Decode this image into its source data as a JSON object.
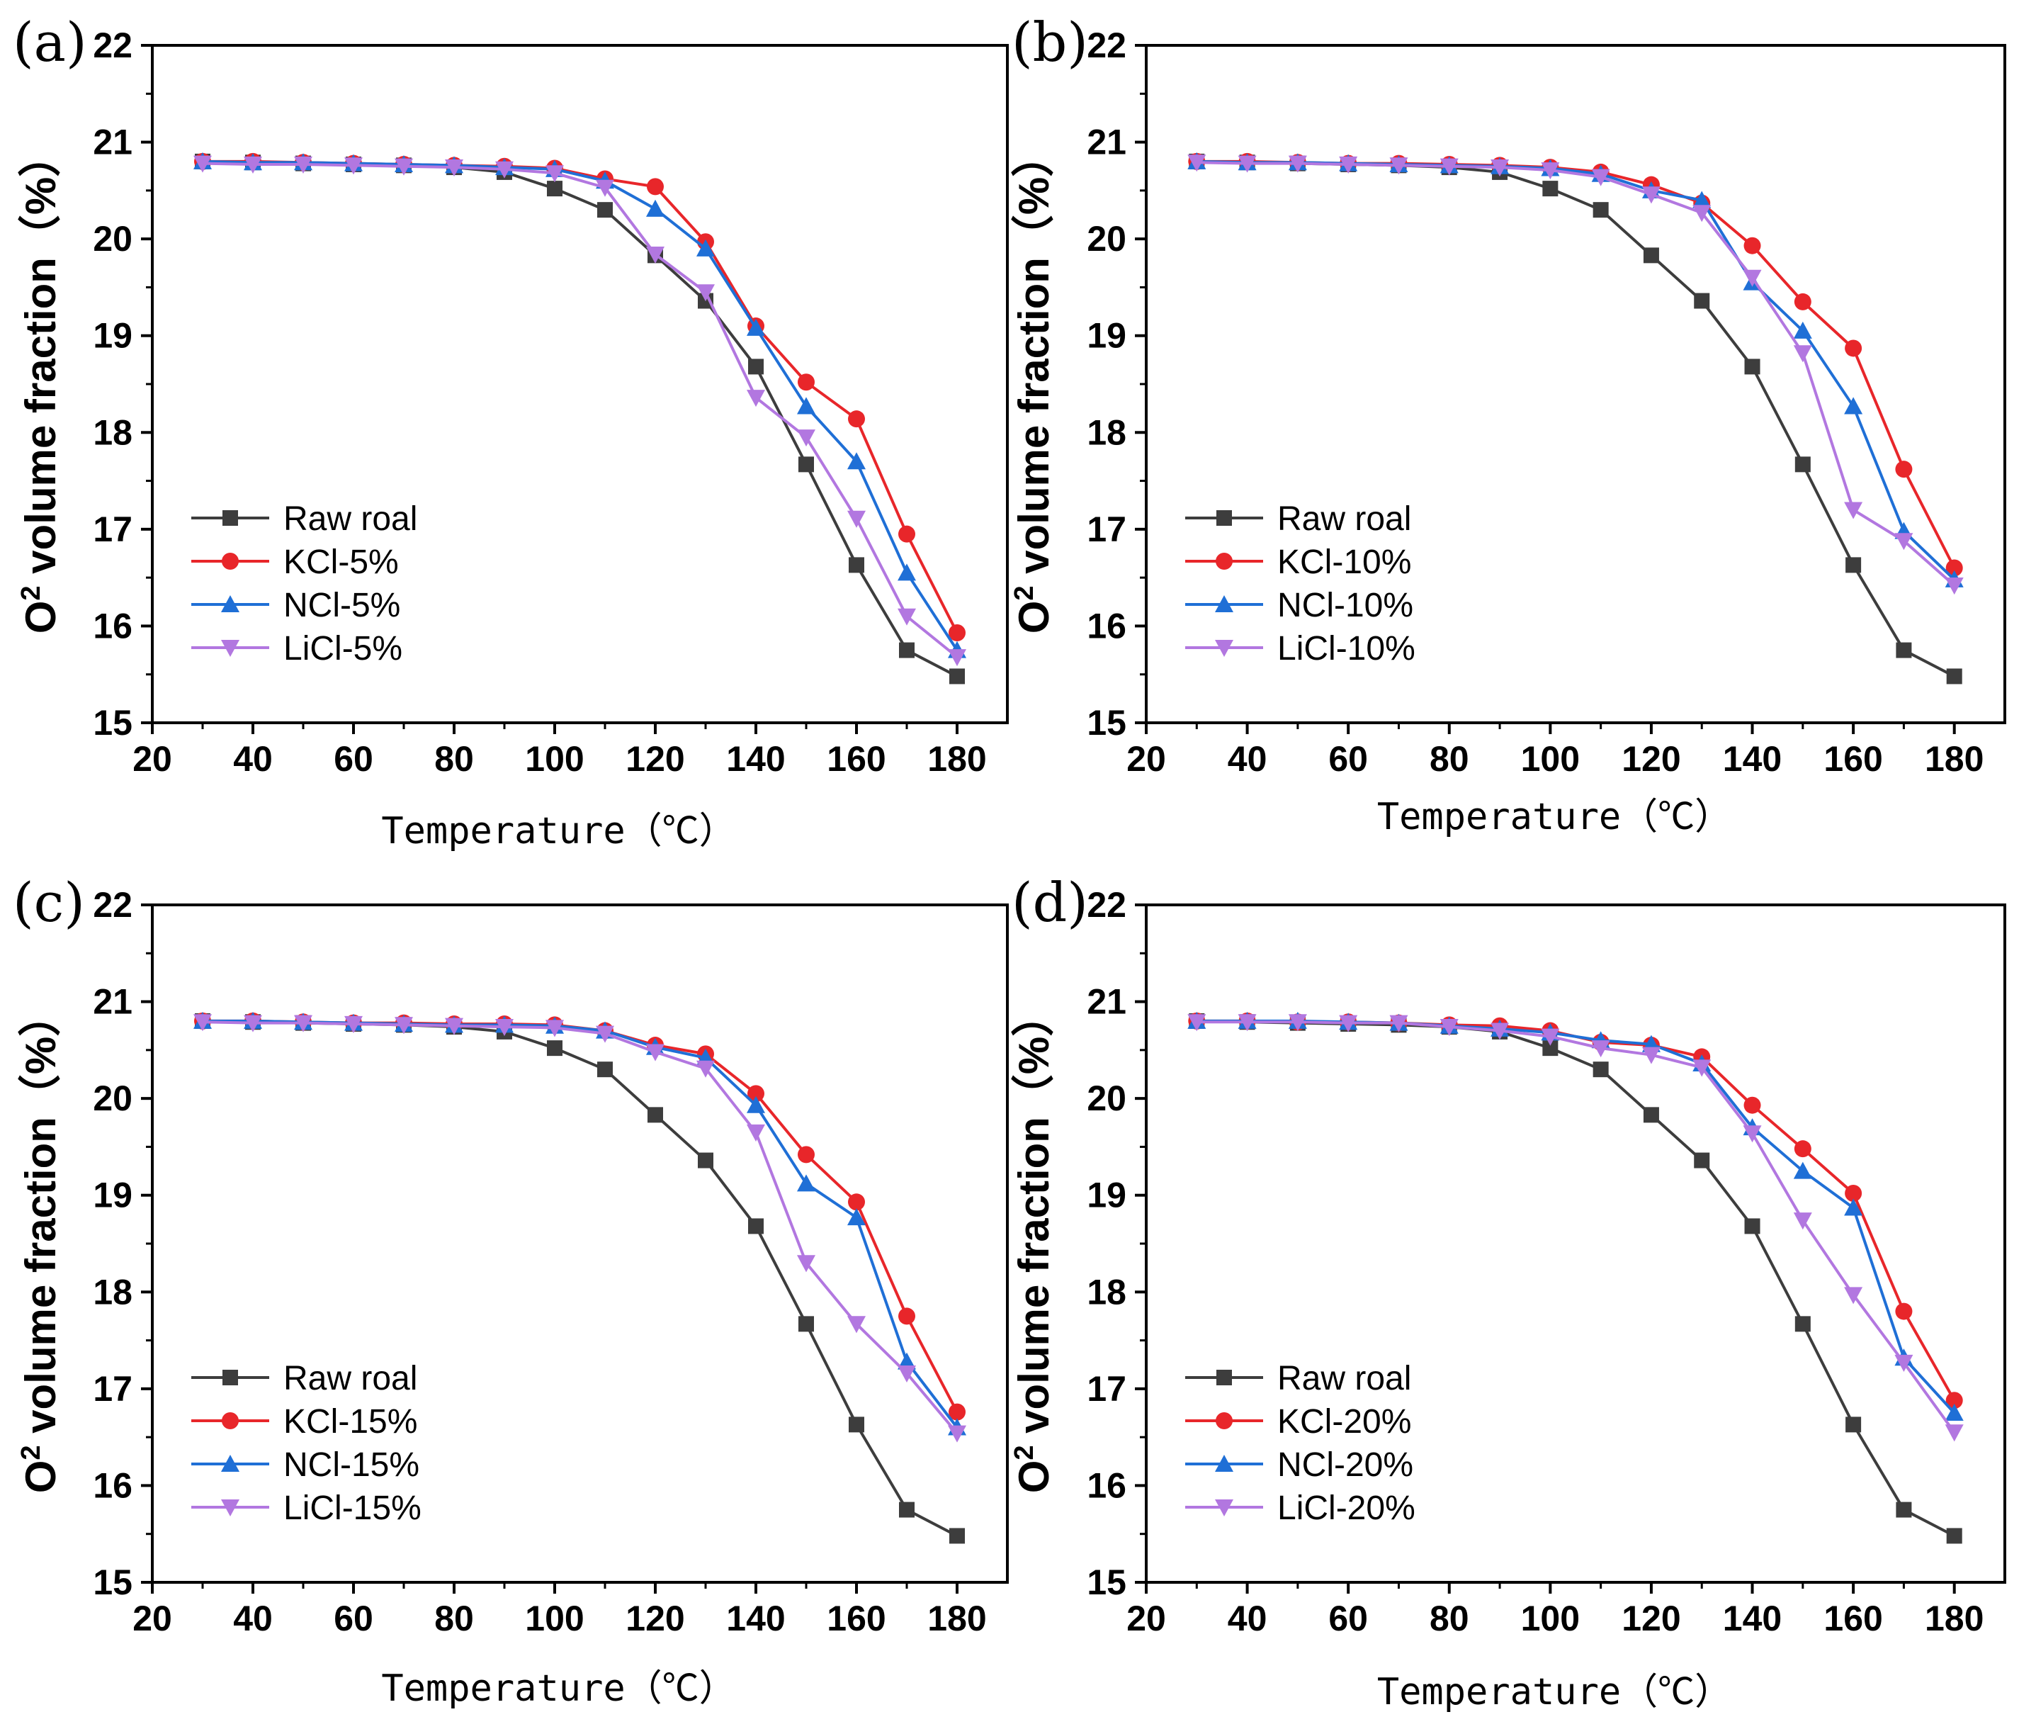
{
  "figure": {
    "x_categories": [
      30,
      40,
      50,
      60,
      70,
      80,
      90,
      100,
      110,
      120,
      130,
      140,
      150,
      160,
      170,
      180
    ],
    "colors": {
      "Raw roal": "#3d3d3d",
      "KCl": "#e8262a",
      "NCl": "#1f6fd6",
      "LiCl": "#b277e0"
    }
  },
  "chart_data": [
    {
      "type": "line",
      "panel_label": "(a)",
      "xlabel": "Temperature（℃）",
      "ylabel_main": "O",
      "ylabel_sup": "2",
      "ylabel_rest": " volume fraction（%）",
      "xlim": [
        20,
        190
      ],
      "ylim": [
        15,
        22
      ],
      "xticks": [
        20,
        40,
        60,
        80,
        100,
        120,
        140,
        160,
        180
      ],
      "yticks": [
        15,
        16,
        17,
        18,
        19,
        20,
        21,
        22
      ],
      "x": [
        30,
        40,
        50,
        60,
        70,
        80,
        90,
        100,
        110,
        120,
        130,
        140,
        150,
        160,
        170,
        180
      ],
      "series": [
        {
          "name": "Raw roal",
          "marker": "square",
          "values": [
            20.8,
            20.79,
            20.78,
            20.77,
            20.76,
            20.74,
            20.69,
            20.52,
            20.3,
            19.83,
            19.36,
            18.68,
            17.67,
            16.63,
            15.75,
            15.48
          ]
        },
        {
          "name": "KCl-5%",
          "marker": "circle",
          "values": [
            20.8,
            20.8,
            20.79,
            20.78,
            20.77,
            20.76,
            20.75,
            20.73,
            20.62,
            20.54,
            19.97,
            19.1,
            18.52,
            18.14,
            16.95,
            15.93
          ]
        },
        {
          "name": "NCl-5%",
          "marker": "triangle-up",
          "values": [
            20.8,
            20.79,
            20.79,
            20.78,
            20.77,
            20.76,
            20.74,
            20.72,
            20.6,
            20.31,
            19.9,
            19.08,
            18.27,
            17.7,
            16.55,
            15.75
          ]
        },
        {
          "name": "LiCl-5%",
          "marker": "triangle-down",
          "values": [
            20.78,
            20.77,
            20.77,
            20.76,
            20.75,
            20.74,
            20.72,
            20.68,
            20.53,
            19.84,
            19.45,
            18.36,
            17.95,
            17.11,
            16.1,
            15.68
          ]
        }
      ]
    },
    {
      "type": "line",
      "panel_label": "(b)",
      "xlabel": "Temperature（℃）",
      "ylabel_main": "O",
      "ylabel_sup": "2",
      "ylabel_rest": " volume fraction（%）",
      "xlim": [
        20,
        190
      ],
      "ylim": [
        15,
        22
      ],
      "xticks": [
        20,
        40,
        60,
        80,
        100,
        120,
        140,
        160,
        180
      ],
      "yticks": [
        15,
        16,
        17,
        18,
        19,
        20,
        21,
        22
      ],
      "x": [
        30,
        40,
        50,
        60,
        70,
        80,
        90,
        100,
        110,
        120,
        130,
        140,
        150,
        160,
        170,
        180
      ],
      "series": [
        {
          "name": "Raw roal",
          "marker": "square",
          "values": [
            20.8,
            20.79,
            20.78,
            20.77,
            20.76,
            20.74,
            20.69,
            20.52,
            20.3,
            19.83,
            19.36,
            18.68,
            17.67,
            16.63,
            15.75,
            15.48
          ]
        },
        {
          "name": "KCl-10%",
          "marker": "circle",
          "values": [
            20.8,
            20.8,
            20.79,
            20.78,
            20.78,
            20.77,
            20.76,
            20.74,
            20.69,
            20.56,
            20.37,
            19.93,
            19.35,
            18.87,
            17.62,
            16.6
          ]
        },
        {
          "name": "NCl-10%",
          "marker": "triangle-up",
          "values": [
            20.8,
            20.79,
            20.79,
            20.78,
            20.77,
            20.76,
            20.75,
            20.73,
            20.67,
            20.5,
            20.4,
            19.55,
            19.05,
            18.27,
            16.98,
            16.48
          ]
        },
        {
          "name": "LiCl-10%",
          "marker": "triangle-down",
          "values": [
            20.79,
            20.78,
            20.78,
            20.77,
            20.76,
            20.75,
            20.74,
            20.71,
            20.64,
            20.46,
            20.27,
            19.6,
            18.82,
            17.2,
            16.88,
            16.42
          ]
        }
      ]
    },
    {
      "type": "line",
      "panel_label": "(c)",
      "xlabel": "Temperature（℃）",
      "ylabel_main": "O",
      "ylabel_sup": "2",
      "ylabel_rest": " volume fraction（%）",
      "xlim": [
        20,
        190
      ],
      "ylim": [
        15,
        22
      ],
      "xticks": [
        20,
        40,
        60,
        80,
        100,
        120,
        140,
        160,
        180
      ],
      "yticks": [
        15,
        16,
        17,
        18,
        19,
        20,
        21,
        22
      ],
      "x": [
        30,
        40,
        50,
        60,
        70,
        80,
        90,
        100,
        110,
        120,
        130,
        140,
        150,
        160,
        170,
        180
      ],
      "series": [
        {
          "name": "Raw roal",
          "marker": "square",
          "values": [
            20.8,
            20.79,
            20.78,
            20.77,
            20.76,
            20.74,
            20.69,
            20.52,
            20.3,
            19.83,
            19.36,
            18.68,
            17.67,
            16.63,
            15.75,
            15.48
          ]
        },
        {
          "name": "KCl-15%",
          "marker": "circle",
          "values": [
            20.8,
            20.8,
            20.79,
            20.78,
            20.78,
            20.77,
            20.77,
            20.76,
            20.7,
            20.55,
            20.46,
            20.05,
            19.42,
            18.93,
            17.75,
            16.76
          ]
        },
        {
          "name": "NCl-15%",
          "marker": "triangle-up",
          "values": [
            20.8,
            20.8,
            20.79,
            20.78,
            20.77,
            20.76,
            20.76,
            20.75,
            20.7,
            20.53,
            20.42,
            19.93,
            19.12,
            18.77,
            17.28,
            16.6
          ]
        },
        {
          "name": "LiCl-15%",
          "marker": "triangle-down",
          "values": [
            20.79,
            20.78,
            20.78,
            20.77,
            20.76,
            20.75,
            20.74,
            20.73,
            20.67,
            20.48,
            20.31,
            19.65,
            18.3,
            17.67,
            17.16,
            16.54
          ]
        }
      ]
    },
    {
      "type": "line",
      "panel_label": "(d)",
      "xlabel": "Temperature（℃）",
      "ylabel_main": "O",
      "ylabel_sup": "2",
      "ylabel_rest": " volume fraction（%）",
      "xlim": [
        20,
        190
      ],
      "ylim": [
        15,
        22
      ],
      "xticks": [
        20,
        40,
        60,
        80,
        100,
        120,
        140,
        160,
        180
      ],
      "yticks": [
        15,
        16,
        17,
        18,
        19,
        20,
        21,
        22
      ],
      "x": [
        30,
        40,
        50,
        60,
        70,
        80,
        90,
        100,
        110,
        120,
        130,
        140,
        150,
        160,
        170,
        180
      ],
      "series": [
        {
          "name": "Raw roal",
          "marker": "square",
          "values": [
            20.8,
            20.79,
            20.78,
            20.77,
            20.76,
            20.74,
            20.69,
            20.52,
            20.3,
            19.83,
            19.36,
            18.68,
            17.67,
            16.63,
            15.75,
            15.48
          ]
        },
        {
          "name": "KCl-20%",
          "marker": "circle",
          "values": [
            20.8,
            20.8,
            20.79,
            20.79,
            20.78,
            20.76,
            20.75,
            20.7,
            20.58,
            20.55,
            20.43,
            19.93,
            19.48,
            19.02,
            17.8,
            16.88
          ]
        },
        {
          "name": "NCl-20%",
          "marker": "triangle-up",
          "values": [
            20.8,
            20.8,
            20.8,
            20.79,
            20.78,
            20.75,
            20.72,
            20.68,
            20.6,
            20.56,
            20.36,
            19.7,
            19.25,
            18.87,
            17.32,
            16.75
          ]
        },
        {
          "name": "LiCl-20%",
          "marker": "triangle-down",
          "values": [
            20.79,
            20.79,
            20.79,
            20.78,
            20.78,
            20.74,
            20.7,
            20.64,
            20.52,
            20.45,
            20.32,
            19.64,
            18.74,
            17.97,
            17.27,
            16.55
          ]
        }
      ]
    }
  ]
}
